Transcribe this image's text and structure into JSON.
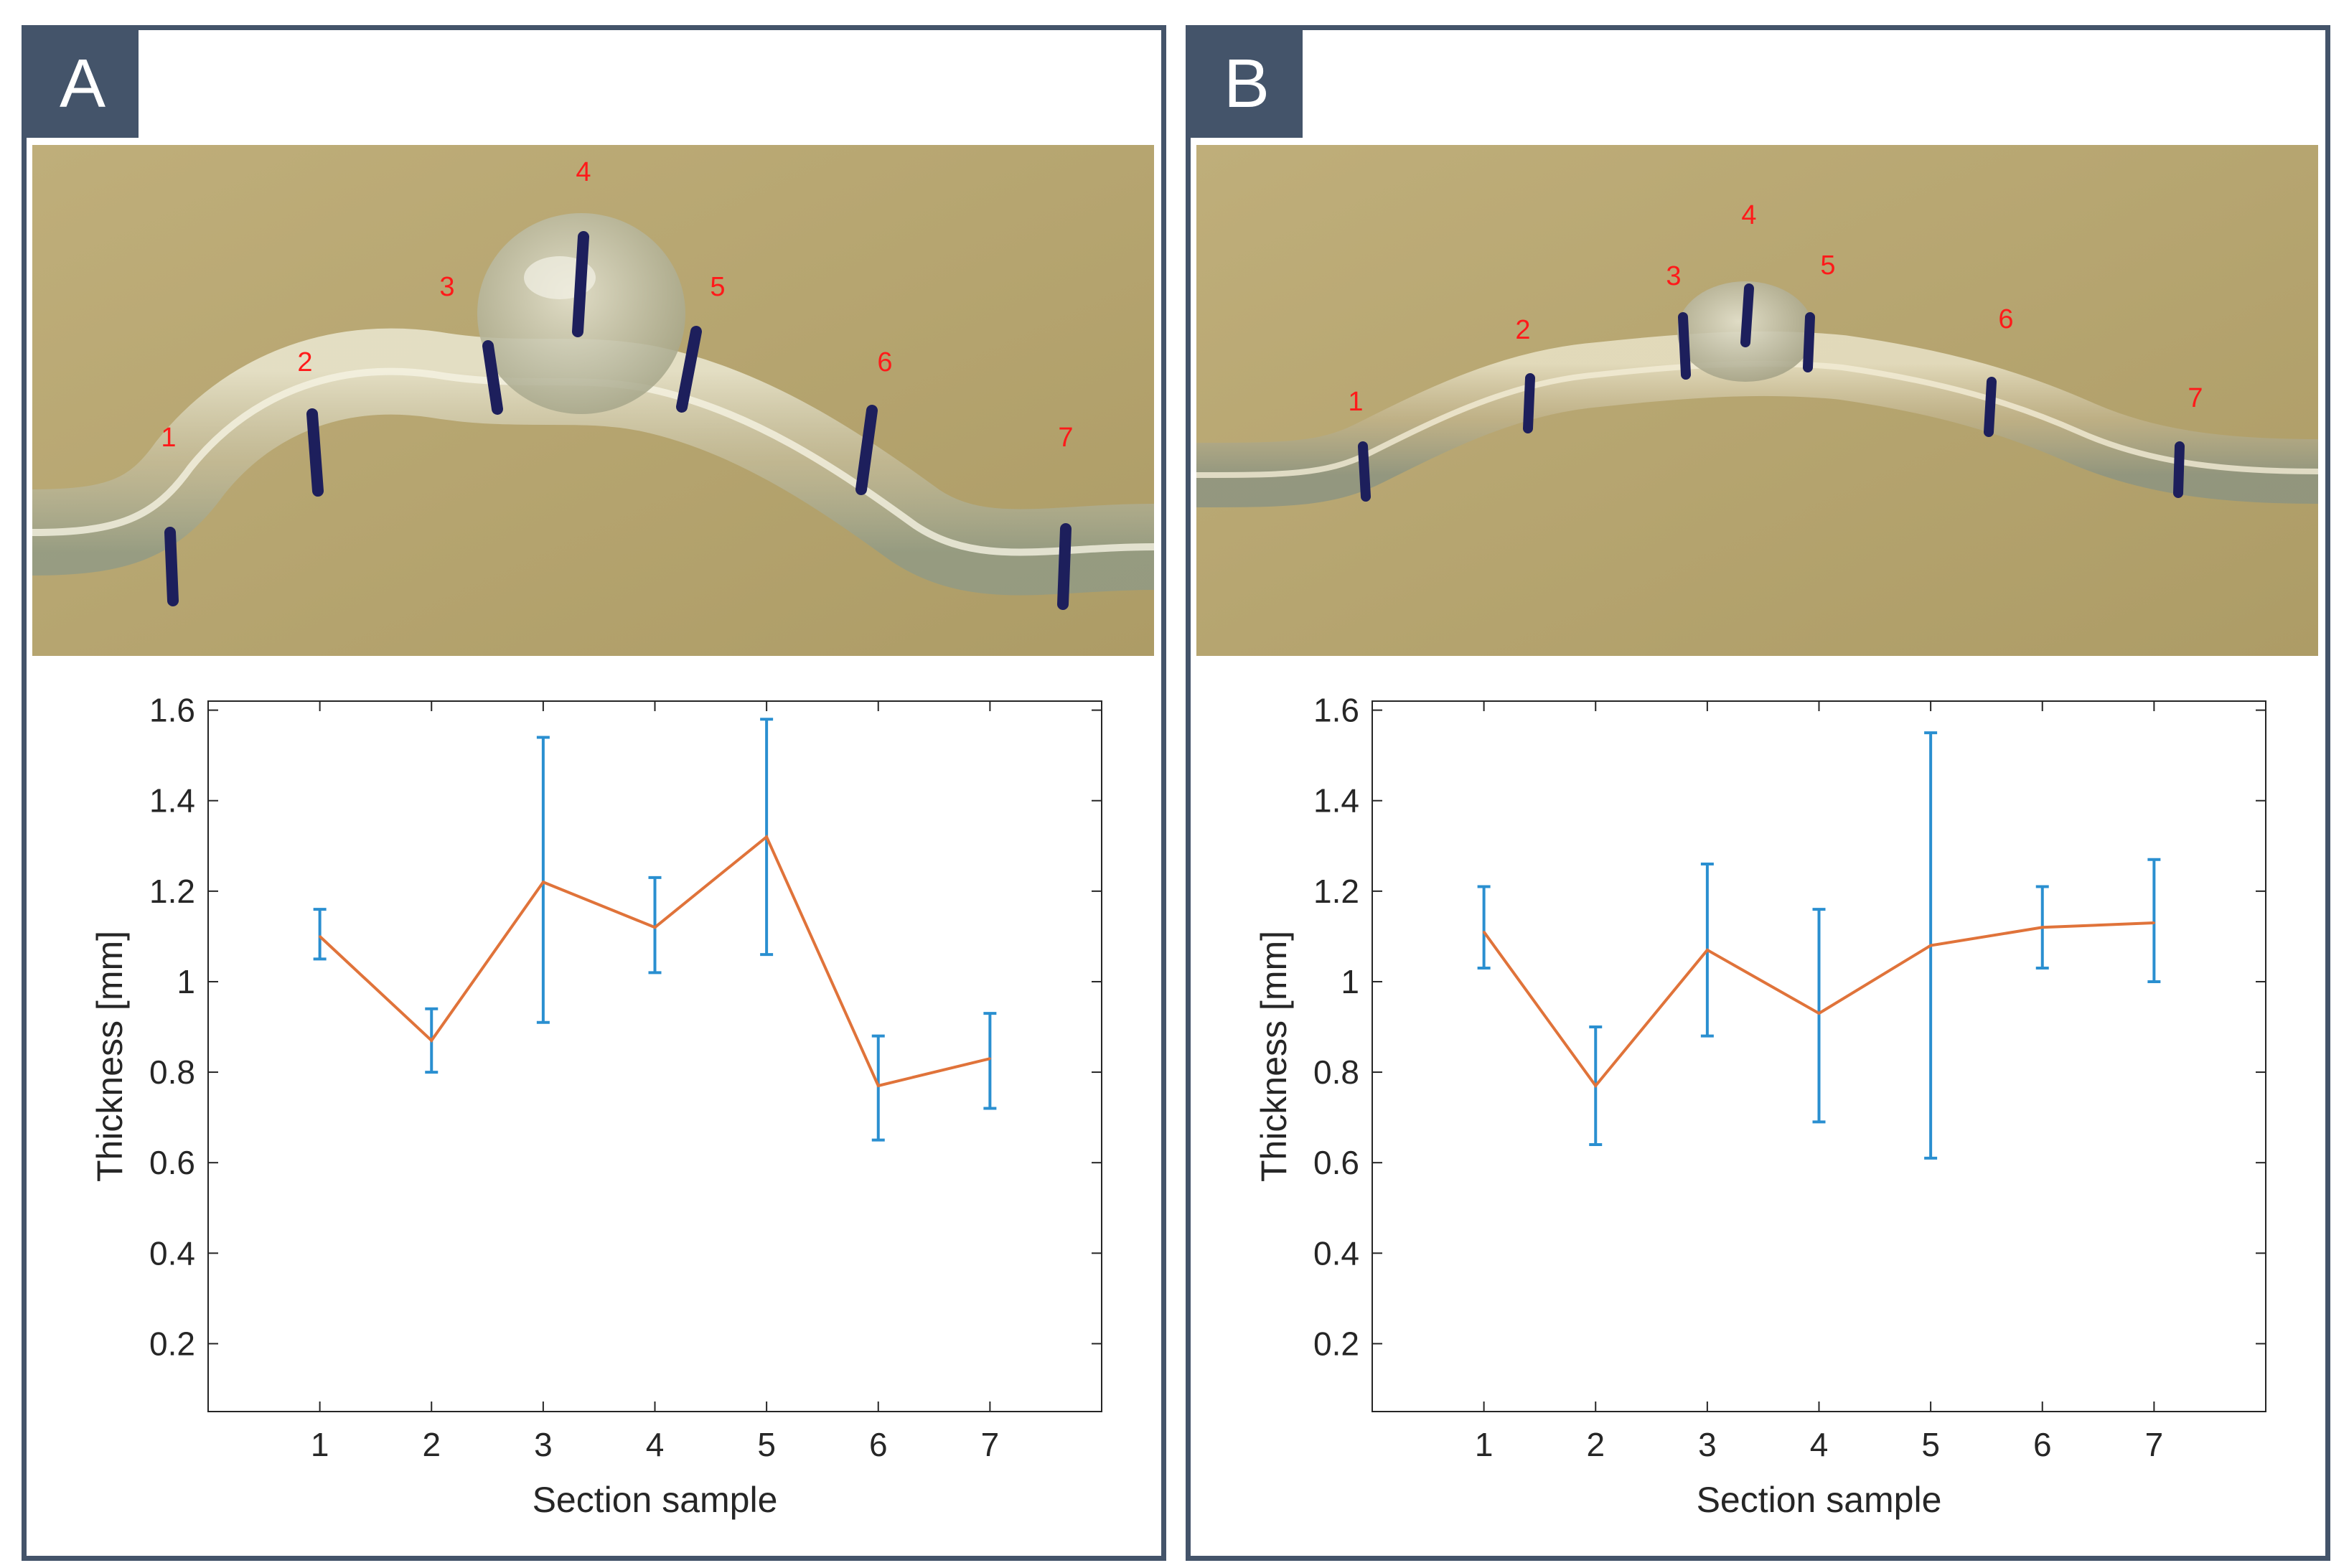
{
  "panels": [
    {
      "label": "A",
      "photo_marks": [
        "1",
        "2",
        "3",
        "4",
        "5",
        "6",
        "7"
      ]
    },
    {
      "label": "B",
      "photo_marks": [
        "1",
        "2",
        "3",
        "4",
        "5",
        "6",
        "7"
      ]
    }
  ],
  "colors": {
    "frame": "#44546a",
    "line": "#e0733a",
    "errorbar": "#2a8fd0",
    "photo_background": "#b9a874",
    "mark_label": "#ff1a1a"
  },
  "chart_data": [
    {
      "type": "line",
      "title": "",
      "xlabel": "Section sample",
      "ylabel": "Thickness [mm]",
      "x": [
        1,
        2,
        3,
        4,
        5,
        6,
        7
      ],
      "xticks": [
        "1",
        "2",
        "3",
        "4",
        "5",
        "6",
        "7"
      ],
      "xlim": [
        0,
        8
      ],
      "ylim": [
        0.05,
        1.62
      ],
      "yticks": [
        "0.2",
        "0.4",
        "0.6",
        "0.8",
        "1",
        "1.2",
        "1.4",
        "1.6"
      ],
      "ytick_values": [
        0.2,
        0.4,
        0.6,
        0.8,
        1.0,
        1.2,
        1.4,
        1.6
      ],
      "grid": false,
      "series": [
        {
          "values": [
            1.1,
            0.87,
            1.22,
            1.12,
            1.32,
            0.77,
            0.83
          ],
          "err_low": [
            1.05,
            0.8,
            0.91,
            1.02,
            1.06,
            0.65,
            0.72
          ],
          "err_high": [
            1.16,
            0.94,
            1.54,
            1.23,
            1.58,
            0.88,
            0.93
          ]
        }
      ]
    },
    {
      "type": "line",
      "title": "",
      "xlabel": "Section sample",
      "ylabel": "Thickness [mm]",
      "x": [
        1,
        2,
        3,
        4,
        5,
        6,
        7
      ],
      "xticks": [
        "1",
        "2",
        "3",
        "4",
        "5",
        "6",
        "7"
      ],
      "xlim": [
        0,
        8
      ],
      "ylim": [
        0.05,
        1.62
      ],
      "yticks": [
        "0.2",
        "0.4",
        "0.6",
        "0.8",
        "1",
        "1.2",
        "1.4",
        "1.6"
      ],
      "ytick_values": [
        0.2,
        0.4,
        0.6,
        0.8,
        1.0,
        1.2,
        1.4,
        1.6
      ],
      "grid": false,
      "series": [
        {
          "values": [
            1.11,
            0.77,
            1.07,
            0.93,
            1.08,
            1.12,
            1.13
          ],
          "err_low": [
            1.03,
            0.64,
            0.88,
            0.69,
            0.61,
            1.03,
            1.0
          ],
          "err_high": [
            1.21,
            0.9,
            1.26,
            1.16,
            1.55,
            1.21,
            1.27
          ]
        }
      ]
    }
  ]
}
